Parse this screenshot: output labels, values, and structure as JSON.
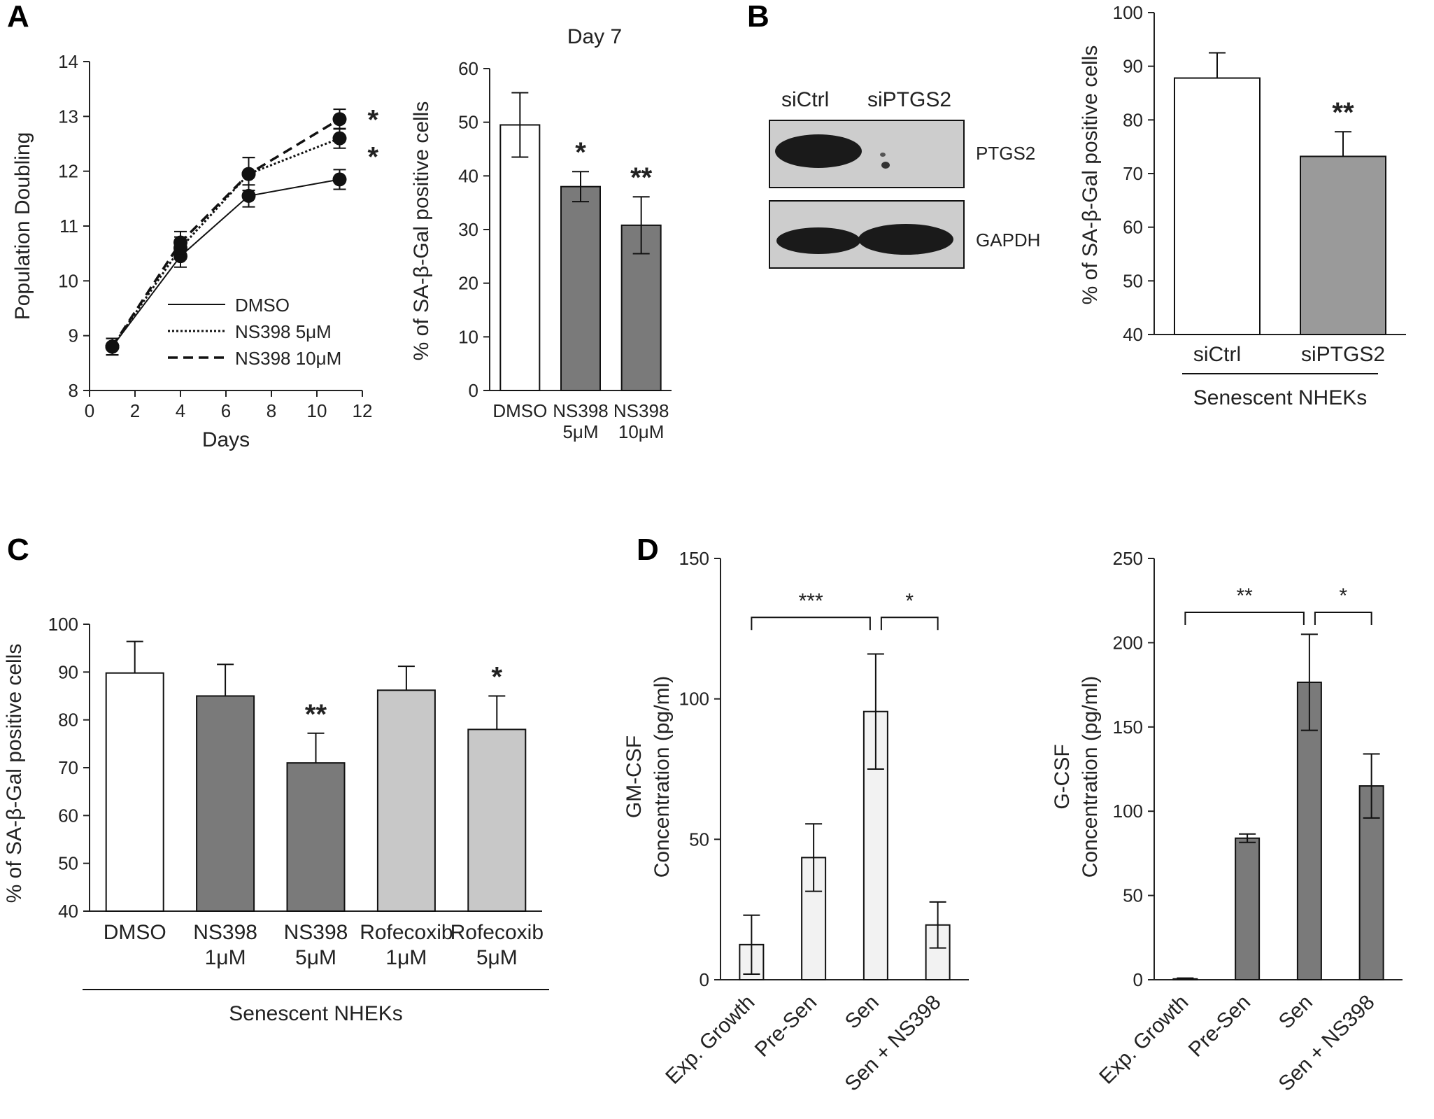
{
  "panels": {
    "A": "A",
    "B": "B",
    "C": "C",
    "D": "D"
  },
  "colors": {
    "white_bar": "#ffffff",
    "dark_bar": "#7a7a7a",
    "mid_bar": "#9a9a9a",
    "light_bar": "#c8c8c8",
    "pale_bar": "#f2f2f2",
    "ink": "#222222"
  },
  "blot": {
    "lane_labels": [
      "siCtrl",
      "siPTGS2"
    ],
    "band_labels": [
      "PTGS2",
      "GAPDH"
    ]
  },
  "chart_data": [
    {
      "id": "A_line",
      "type": "line",
      "xlabel": "Days",
      "ylabel": "Population Doubling",
      "xlim": [
        0,
        12
      ],
      "ylim": [
        8,
        14
      ],
      "xticks": [
        0,
        2,
        4,
        6,
        8,
        10,
        12
      ],
      "yticks": [
        8,
        9,
        10,
        11,
        12,
        13,
        14
      ],
      "legend": {
        "position": "center",
        "entries": [
          "DMSO",
          "NS398 5μM",
          "NS398 10μM"
        ]
      },
      "series": [
        {
          "name": "DMSO",
          "style": "solid",
          "x": [
            1,
            4,
            7,
            11
          ],
          "y": [
            8.8,
            10.45,
            11.55,
            11.85
          ],
          "err": [
            0.15,
            0.2,
            0.2,
            0.18
          ]
        },
        {
          "name": "NS398 5μM",
          "style": "dotted",
          "x": [
            1,
            4,
            7,
            11
          ],
          "y": [
            8.8,
            10.6,
            11.95,
            12.6
          ],
          "err": [
            0.15,
            0.2,
            0.3,
            0.18
          ]
        },
        {
          "name": "NS398 10μM",
          "style": "dashed",
          "x": [
            1,
            4,
            7,
            11
          ],
          "y": [
            8.8,
            10.7,
            11.95,
            12.95
          ],
          "err": [
            0.15,
            0.2,
            0.3,
            0.18
          ]
        }
      ],
      "annotations": [
        "*",
        "*"
      ]
    },
    {
      "id": "A_bar",
      "type": "bar",
      "title": "Day 7",
      "ylabel": "% of SA-β-Gal positive cells",
      "ylim": [
        0,
        60
      ],
      "yticks": [
        0,
        10,
        20,
        30,
        40,
        50,
        60
      ],
      "categories": [
        [
          "DMSO"
        ],
        [
          "NS398",
          "5μM"
        ],
        [
          "NS398",
          "10μM"
        ]
      ],
      "values": [
        49.5,
        38,
        30.8
      ],
      "errors": [
        6,
        2.8,
        5.3
      ],
      "fills": [
        "white",
        "dark",
        "dark"
      ],
      "annotations": [
        "",
        "*",
        "**"
      ]
    },
    {
      "id": "B_bar",
      "type": "bar",
      "ylabel": "% of SA-β-Gal positive cells",
      "ylim": [
        40,
        100
      ],
      "yticks": [
        40,
        50,
        60,
        70,
        80,
        90,
        100
      ],
      "categories": [
        [
          "siCtrl"
        ],
        [
          "siPTGS2"
        ]
      ],
      "values": [
        87.8,
        73.2
      ],
      "errors": [
        4.7,
        4.6
      ],
      "fills": [
        "white",
        "mid"
      ],
      "annotations": [
        "",
        "**"
      ],
      "group_label": "Senescent NHEKs"
    },
    {
      "id": "C_bar",
      "type": "bar",
      "ylabel": "% of SA-β-Gal positive cells",
      "ylim": [
        40,
        100
      ],
      "yticks": [
        40,
        50,
        60,
        70,
        80,
        90,
        100
      ],
      "categories": [
        [
          "DMSO"
        ],
        [
          "NS398",
          "1μM"
        ],
        [
          "NS398",
          "5μM"
        ],
        [
          "Rofecoxib",
          "1μM"
        ],
        [
          "Rofecoxib",
          "5μM"
        ]
      ],
      "values": [
        89.8,
        85,
        71,
        86.2,
        78
      ],
      "errors": [
        6.6,
        6.6,
        6.2,
        5,
        7
      ],
      "fills": [
        "white",
        "dark",
        "dark",
        "light",
        "light"
      ],
      "annotations": [
        "",
        "",
        "**",
        "",
        "*"
      ],
      "group_label": "Senescent NHEKs"
    },
    {
      "id": "D_gmcsf",
      "type": "bar",
      "ylabel": "GM-CSF\nConcentration (pg/ml)",
      "ylim": [
        0,
        150
      ],
      "yticks": [
        0,
        50,
        100,
        150
      ],
      "categories": [
        "Exp. Growth",
        "Pre-Sen",
        "Sen",
        "Sen + NS398"
      ],
      "values": [
        12.5,
        43.5,
        95.5,
        19.5
      ],
      "errors": [
        10.5,
        12,
        20.5,
        8.2
      ],
      "fills": [
        "pale",
        "pale",
        "pale",
        "pale"
      ],
      "brackets": [
        {
          "from": 0,
          "to": 2,
          "label": "***"
        },
        {
          "from": 2,
          "to": 3,
          "label": "*"
        }
      ]
    },
    {
      "id": "D_gcsf",
      "type": "bar",
      "ylabel": "G-CSF\nConcentration (pg/ml)",
      "ylim": [
        0,
        250
      ],
      "yticks": [
        0,
        50,
        100,
        150,
        200,
        250
      ],
      "categories": [
        "Exp. Growth",
        "Pre-Sen",
        "Sen",
        "Sen + NS398"
      ],
      "values": [
        0.5,
        84,
        176.5,
        115
      ],
      "errors": [
        0.5,
        2.5,
        28.5,
        19
      ],
      "fills": [
        "dark",
        "dark",
        "dark",
        "dark"
      ],
      "brackets": [
        {
          "from": 0,
          "to": 2,
          "label": "**"
        },
        {
          "from": 2,
          "to": 3,
          "label": "*"
        }
      ]
    }
  ]
}
